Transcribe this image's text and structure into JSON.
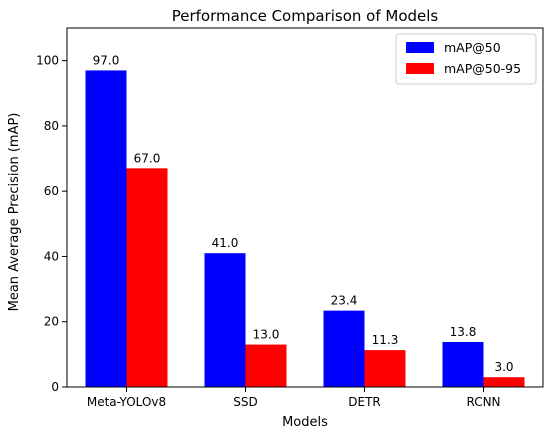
{
  "chart_data": {
    "type": "bar",
    "title": "Performance Comparison of Models",
    "xlabel": "Models",
    "ylabel": "Mean Average Precision (mAP)",
    "categories": [
      "Meta-YOLOv8",
      "SSD",
      "DETR",
      "RCNN"
    ],
    "series": [
      {
        "name": "mAP@50",
        "values": [
          97.0,
          41.0,
          23.4,
          13.8
        ],
        "color": "#0000ff"
      },
      {
        "name": "mAP@50-95",
        "values": [
          67.0,
          13.0,
          11.3,
          3.0
        ],
        "color": "#ff0000"
      }
    ],
    "data_labels": [
      [
        "97.0",
        "41.0",
        "23.4",
        "13.8"
      ],
      [
        "67.0",
        "13.0",
        "11.3",
        "3.0"
      ]
    ],
    "ylim": [
      0,
      110
    ],
    "yticks": [
      0,
      20,
      40,
      60,
      80,
      100
    ],
    "legend_position": "top-right",
    "grid": false
  }
}
